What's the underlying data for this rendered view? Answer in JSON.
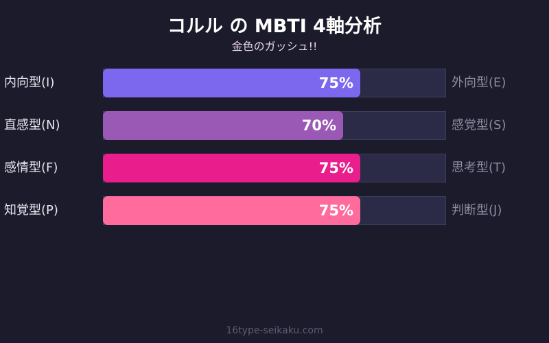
{
  "header": {
    "title": "コルル の MBTI 4軸分析",
    "subtitle": "金色のガッシュ!!"
  },
  "footer": "16type-seikaku.com",
  "chart_data": {
    "type": "bar",
    "orientation": "horizontal",
    "xlim": [
      0,
      100
    ],
    "rows": [
      {
        "left": "内向型(I)",
        "right": "外向型(E)",
        "value": 75,
        "label": "75%",
        "color": "#7b68ee"
      },
      {
        "left": "直感型(N)",
        "right": "感覚型(S)",
        "value": 70,
        "label": "70%",
        "color": "#9b59b6"
      },
      {
        "left": "感情型(F)",
        "right": "思考型(T)",
        "value": 75,
        "label": "75%",
        "color": "#e91e8c"
      },
      {
        "left": "知覚型(P)",
        "right": "判断型(J)",
        "value": 75,
        "label": "75%",
        "color": "#ff6b9d"
      }
    ]
  }
}
